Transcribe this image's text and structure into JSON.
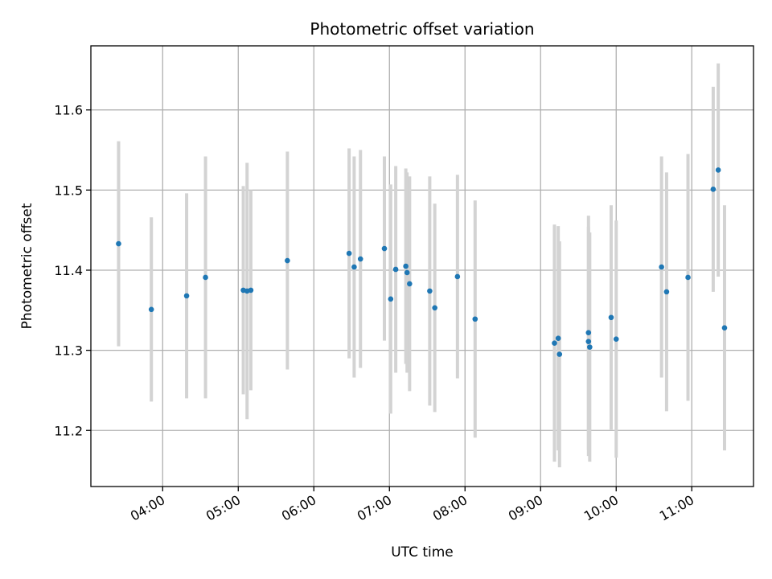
{
  "chart_data": {
    "type": "scatter",
    "title": "Photometric offset variation",
    "xlabel": "UTC time",
    "ylabel": "Photometric offset",
    "x_ticks": [
      "04:00",
      "05:00",
      "06:00",
      "07:00",
      "08:00",
      "09:00",
      "10:00",
      "11:00"
    ],
    "y_ticks": [
      "11.2",
      "11.3",
      "11.4",
      "11.5",
      "11.6"
    ],
    "xlim": [
      "03:03",
      "11:49"
    ],
    "ylim": [
      11.13,
      11.68
    ],
    "grid": true,
    "colors": {
      "point": "#1f77b4",
      "errorbar": "#d3d3d3",
      "grid": "#b0b0b0"
    },
    "points": [
      {
        "x": "03:25",
        "y": 11.433,
        "err": 0.128
      },
      {
        "x": "03:51",
        "y": 11.351,
        "err": 0.115
      },
      {
        "x": "04:19",
        "y": 11.368,
        "err": 0.128
      },
      {
        "x": "04:34",
        "y": 11.391,
        "err": 0.151
      },
      {
        "x": "05:04",
        "y": 11.375,
        "err": 0.13
      },
      {
        "x": "05:07",
        "y": 11.374,
        "err": 0.16
      },
      {
        "x": "05:10",
        "y": 11.375,
        "err": 0.125
      },
      {
        "x": "05:39",
        "y": 11.412,
        "err": 0.136
      },
      {
        "x": "06:28",
        "y": 11.421,
        "err": 0.131
      },
      {
        "x": "06:32",
        "y": 11.404,
        "err": 0.138
      },
      {
        "x": "06:37",
        "y": 11.414,
        "err": 0.136
      },
      {
        "x": "06:56",
        "y": 11.427,
        "err": 0.115
      },
      {
        "x": "07:01",
        "y": 11.364,
        "err": 0.143
      },
      {
        "x": "07:05",
        "y": 11.401,
        "err": 0.129
      },
      {
        "x": "07:13",
        "y": 11.405,
        "err": 0.122
      },
      {
        "x": "07:14",
        "y": 11.397,
        "err": 0.125
      },
      {
        "x": "07:16",
        "y": 11.383,
        "err": 0.134
      },
      {
        "x": "07:32",
        "y": 11.374,
        "err": 0.143
      },
      {
        "x": "07:36",
        "y": 11.353,
        "err": 0.13
      },
      {
        "x": "07:54",
        "y": 11.392,
        "err": 0.127
      },
      {
        "x": "08:08",
        "y": 11.339,
        "err": 0.148
      },
      {
        "x": "09:11",
        "y": 11.309,
        "err": 0.148
      },
      {
        "x": "09:14",
        "y": 11.315,
        "err": 0.14
      },
      {
        "x": "09:15",
        "y": 11.295,
        "err": 0.141
      },
      {
        "x": "09:38",
        "y": 11.322,
        "err": 0.146
      },
      {
        "x": "09:38",
        "y": 11.311,
        "err": 0.143
      },
      {
        "x": "09:39",
        "y": 11.304,
        "err": 0.143
      },
      {
        "x": "09:56",
        "y": 11.341,
        "err": 0.14
      },
      {
        "x": "10:00",
        "y": 11.314,
        "err": 0.148
      },
      {
        "x": "10:36",
        "y": 11.404,
        "err": 0.138
      },
      {
        "x": "10:40",
        "y": 11.373,
        "err": 0.149
      },
      {
        "x": "10:57",
        "y": 11.391,
        "err": 0.154
      },
      {
        "x": "11:17",
        "y": 11.501,
        "err": 0.128
      },
      {
        "x": "11:21",
        "y": 11.525,
        "err": 0.133
      },
      {
        "x": "11:26",
        "y": 11.328,
        "err": 0.153
      }
    ]
  }
}
